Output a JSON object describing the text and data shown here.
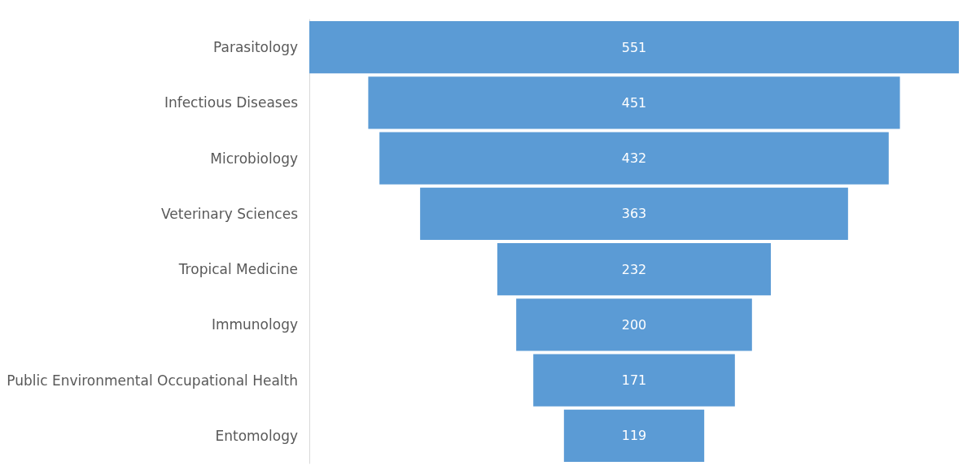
{
  "chart_data": {
    "type": "other",
    "data_labels": true,
    "categories": [
      "Parasitology",
      "Infectious Diseases",
      "Microbiology",
      "Veterinary Sciences",
      "Tropical Medicine",
      "Immunology",
      "Public Environmental Occupational Health",
      "Entomology"
    ],
    "values": [
      551,
      451,
      432,
      363,
      232,
      200,
      171,
      119
    ],
    "color": "#5b9bd5"
  }
}
